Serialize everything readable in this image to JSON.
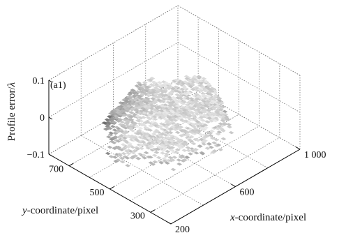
{
  "chart_data": {
    "type": "surface",
    "panel_label": "(a1)",
    "zlabel_prefix": "Profile  error/",
    "zlabel_symbol": "λ",
    "xlabel_italic": "x",
    "xlabel_rest": "-coordinate/pixel",
    "ylabel_italic": "y",
    "ylabel_rest": "-coordinate/pixel",
    "xlim": [
      200,
      1000
    ],
    "ylim": [
      200,
      800
    ],
    "zlim": [
      -0.1,
      0.1
    ],
    "x_ticks": [
      {
        "value": 200,
        "label": "200"
      },
      {
        "value": 600,
        "label": "600"
      },
      {
        "value": 1000,
        "label": "1 000"
      }
    ],
    "y_ticks": [
      {
        "value": 300,
        "label": "300"
      },
      {
        "value": 500,
        "label": "500"
      },
      {
        "value": 700,
        "label": "700"
      }
    ],
    "z_ticks": [
      {
        "value": 0.1,
        "label": "0.1"
      },
      {
        "value": 0,
        "label": "0"
      },
      {
        "value": -0.1,
        "label": "−0.1"
      }
    ],
    "grid": true,
    "colormap": "gray"
  }
}
